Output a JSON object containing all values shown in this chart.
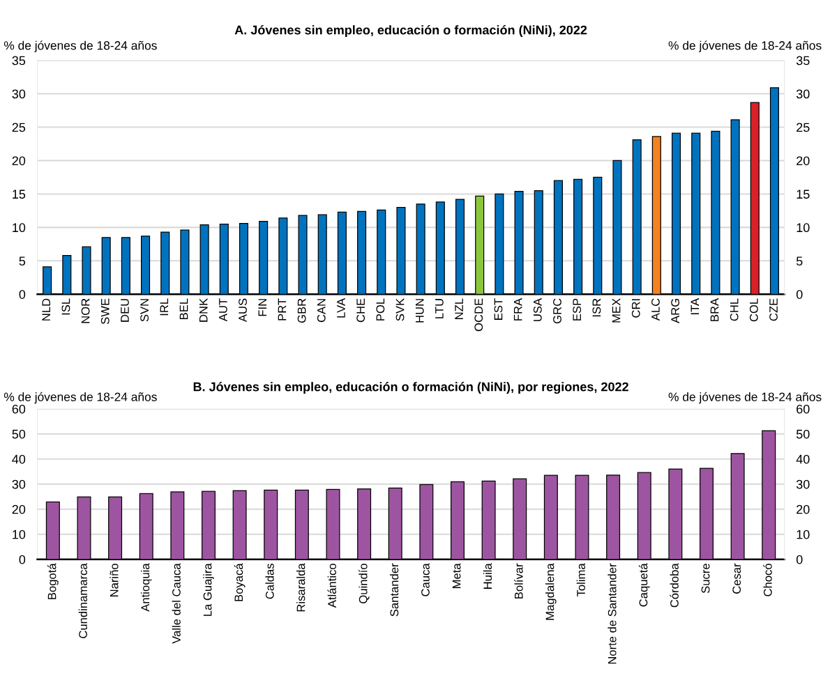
{
  "chart_data": [
    {
      "type": "bar",
      "title": "A. Jóvenes sin empleo, educación o formación (NiNi), 2022",
      "ylabel": "% de jóvenes de 18-24 años",
      "y2label": "% de jóvenes de 18-24 años",
      "categories": [
        "NLD",
        "ISL",
        "NOR",
        "SWE",
        "DEU",
        "SVN",
        "IRL",
        "BEL",
        "DNK",
        "AUT",
        "AUS",
        "FIN",
        "PRT",
        "GBR",
        "CAN",
        "LVA",
        "CHE",
        "POL",
        "SVK",
        "HUN",
        "LTU",
        "NZL",
        "OCDE",
        "EST",
        "FRA",
        "USA",
        "GRC",
        "ESP",
        "ISR",
        "MEX",
        "CRI",
        "ALC",
        "ARG",
        "ITA",
        "BRA",
        "CHL",
        "COL",
        "CZE"
      ],
      "values": [
        4.1,
        5.8,
        7.1,
        8.5,
        8.5,
        8.7,
        9.3,
        9.6,
        10.4,
        10.5,
        10.6,
        10.9,
        11.4,
        11.8,
        11.9,
        12.3,
        12.4,
        12.6,
        13.0,
        13.5,
        13.8,
        14.2,
        14.7,
        15.0,
        15.4,
        15.5,
        17.0,
        17.2,
        17.5,
        20.0,
        23.1,
        23.6,
        24.1,
        24.1,
        24.4,
        26.1,
        28.7,
        30.9
      ],
      "colors": [
        "#0073bf",
        "#0073bf",
        "#0073bf",
        "#0073bf",
        "#0073bf",
        "#0073bf",
        "#0073bf",
        "#0073bf",
        "#0073bf",
        "#0073bf",
        "#0073bf",
        "#0073bf",
        "#0073bf",
        "#0073bf",
        "#0073bf",
        "#0073bf",
        "#0073bf",
        "#0073bf",
        "#0073bf",
        "#0073bf",
        "#0073bf",
        "#0073bf",
        "#8cc63f",
        "#0073bf",
        "#0073bf",
        "#0073bf",
        "#0073bf",
        "#0073bf",
        "#0073bf",
        "#0073bf",
        "#0073bf",
        "#f58220",
        "#0073bf",
        "#0073bf",
        "#0073bf",
        "#0073bf",
        "#da2128",
        "#0073bf"
      ],
      "ylim": [
        0,
        35
      ],
      "yticks": [
        0,
        5,
        10,
        15,
        20,
        25,
        30,
        35
      ],
      "y2lim": [
        0,
        35
      ],
      "y2ticks": [
        0,
        5,
        10,
        15,
        20,
        25,
        30,
        35
      ],
      "grid": "y"
    },
    {
      "type": "bar",
      "title": "B. Jóvenes sin empleo, educación o formación (NiNi), por regiones, 2022",
      "ylabel": "% de jóvenes de 18-24 años",
      "y2label": "% de jóvenes de 18-24 años",
      "categories": [
        "Bogotá",
        "Cundinamarca",
        "Nariño",
        "Antioquia",
        "Valle del Cauca",
        "La Guajira",
        "Boyacá",
        "Caldas",
        "Risaralda",
        "Atlántico",
        "Quindío",
        "Santander",
        "Cauca",
        "Meta",
        "Huila",
        "Bolívar",
        "Magdalena",
        "Tolima",
        "Norte de Santander",
        "Caquetá",
        "Córdoba",
        "Sucre",
        "Cesar",
        "Chocó"
      ],
      "values": [
        22.9,
        24.9,
        24.9,
        26.2,
        26.9,
        27.1,
        27.4,
        27.6,
        27.6,
        27.9,
        28.1,
        28.4,
        29.8,
        30.9,
        31.2,
        32.1,
        33.5,
        33.5,
        33.6,
        34.6,
        36.0,
        36.3,
        42.2,
        51.3
      ],
      "colors": [
        "#9e55a1",
        "#9e55a1",
        "#9e55a1",
        "#9e55a1",
        "#9e55a1",
        "#9e55a1",
        "#9e55a1",
        "#9e55a1",
        "#9e55a1",
        "#9e55a1",
        "#9e55a1",
        "#9e55a1",
        "#9e55a1",
        "#9e55a1",
        "#9e55a1",
        "#9e55a1",
        "#9e55a1",
        "#9e55a1",
        "#9e55a1",
        "#9e55a1",
        "#9e55a1",
        "#9e55a1",
        "#9e55a1",
        "#9e55a1"
      ],
      "ylim": [
        0,
        60
      ],
      "yticks": [
        0,
        10,
        20,
        30,
        40,
        50,
        60
      ],
      "y2lim": [
        0,
        60
      ],
      "y2ticks": [
        0,
        10,
        20,
        30,
        40,
        50,
        60
      ],
      "grid": "y"
    }
  ]
}
